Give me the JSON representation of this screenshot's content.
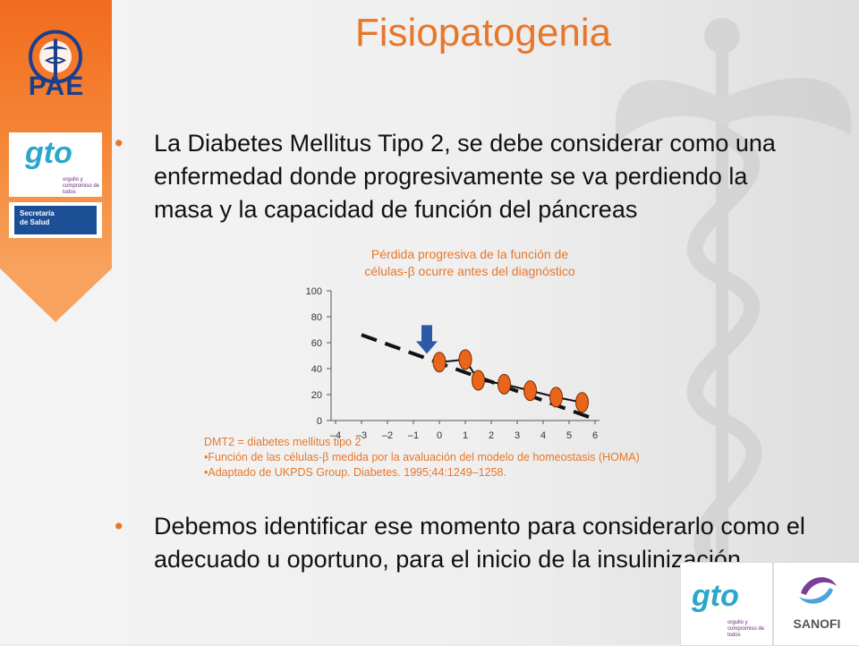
{
  "title": "Fisiopatogenia",
  "bullets": {
    "bullet_char": "•",
    "first": "La Diabetes  Mellitus Tipo 2, se debe considerar como una enfermedad donde progresivamente se va perdiendo la masa y la capacidad de función del páncreas",
    "second": "Debemos identificar ese momento para considerarlo como el adecuado u oportuno, para el inicio de la insulinización."
  },
  "logos": {
    "pae": "PAE",
    "gto_top": "gto",
    "gto_bottom": "gto",
    "secretaria_line1": "Secretaría",
    "secretaria_line2": "de Salud",
    "sanofi": "SANOFI",
    "gto_tagline": "orgullo y compromiso de todos"
  },
  "chart_title": "Pérdida progresiva de la función de células-β ocurre antes del diagnóstico",
  "notes": {
    "line1": "DMT2 = diabetes mellitus tipo 2",
    "line2": "•Función de las células-β medida por la avaluación del modelo de homeostasis (HOMA)",
    "line3": "•Adaptado de UKPDS Group. Diabetes. 1995;44:1249–1258."
  },
  "chart_data": {
    "type": "scatter",
    "x_ticks": [
      "–4",
      "–3",
      "–2",
      "–1",
      "0",
      "1",
      "2",
      "3",
      "4",
      "5",
      "6"
    ],
    "y_ticks": [
      "0",
      "20",
      "40",
      "60",
      "80",
      "100"
    ],
    "ylim": [
      0,
      100
    ],
    "xlim": [
      -4,
      6
    ],
    "points": [
      {
        "x": 0,
        "y": 45
      },
      {
        "x": 1,
        "y": 47
      },
      {
        "x": 1.5,
        "y": 31
      },
      {
        "x": 2.5,
        "y": 28
      },
      {
        "x": 3.5,
        "y": 23
      },
      {
        "x": 4.5,
        "y": 18
      },
      {
        "x": 5.5,
        "y": 14
      }
    ],
    "trend_line": [
      {
        "x": -3,
        "y": 66
      },
      {
        "x": 6,
        "y": 1
      }
    ],
    "arrow_at": {
      "x": 0,
      "y": 57
    },
    "colors": {
      "points": "#e8651a",
      "point_outline": "#7a2a00",
      "trend": "#111111",
      "arrow": "#2a5aa8",
      "axis": "#555555"
    }
  }
}
